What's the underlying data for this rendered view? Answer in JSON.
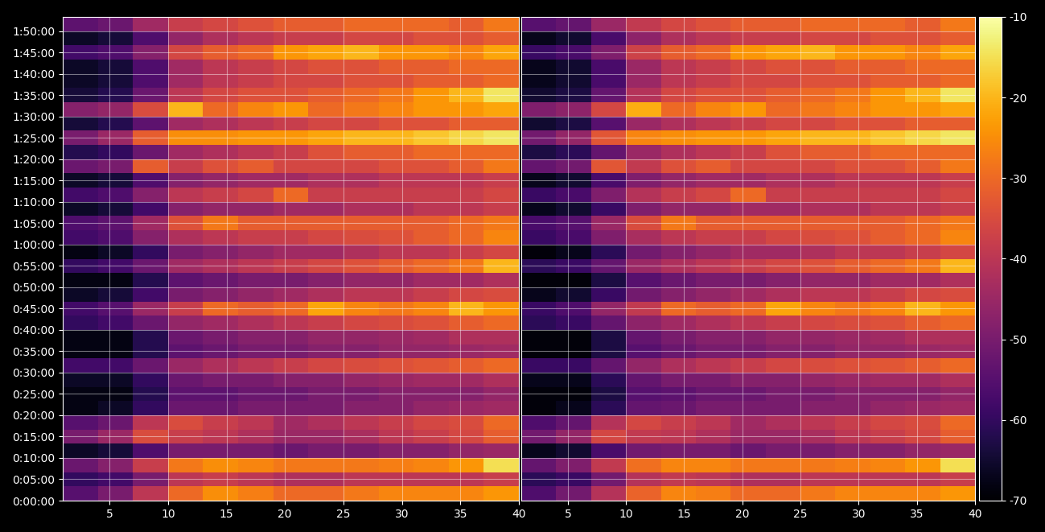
{
  "chart_data": [
    {
      "type": "heatmap",
      "grid": true,
      "xlim": [
        1,
        40
      ],
      "ylim": [
        0,
        6800
      ],
      "xticks": [
        5,
        10,
        15,
        20,
        25,
        30,
        35,
        40
      ],
      "yticks": [
        {
          "value": 0,
          "label": "0:00:00"
        },
        {
          "value": 300,
          "label": "0:05:00"
        },
        {
          "value": 600,
          "label": "0:10:00"
        },
        {
          "value": 900,
          "label": "0:15:00"
        },
        {
          "value": 1200,
          "label": "0:20:00"
        },
        {
          "value": 1500,
          "label": "0:25:00"
        },
        {
          "value": 1800,
          "label": "0:30:00"
        },
        {
          "value": 2100,
          "label": "0:35:00"
        },
        {
          "value": 2400,
          "label": "0:40:00"
        },
        {
          "value": 2700,
          "label": "0:45:00"
        },
        {
          "value": 3000,
          "label": "0:50:00"
        },
        {
          "value": 3300,
          "label": "0:55:00"
        },
        {
          "value": 3600,
          "label": "1:00:00"
        },
        {
          "value": 3900,
          "label": "1:05:00"
        },
        {
          "value": 4200,
          "label": "1:10:00"
        },
        {
          "value": 4500,
          "label": "1:15:00"
        },
        {
          "value": 4800,
          "label": "1:20:00"
        },
        {
          "value": 5100,
          "label": "1:25:00"
        },
        {
          "value": 5400,
          "label": "1:30:00"
        },
        {
          "value": 5700,
          "label": "1:35:00"
        },
        {
          "value": 6000,
          "label": "1:40:00"
        },
        {
          "value": 6300,
          "label": "1:45:00"
        },
        {
          "value": 6600,
          "label": "1:50:00"
        }
      ],
      "x_edges": [
        1,
        4,
        7,
        10,
        13,
        16,
        19,
        22,
        25,
        28,
        31,
        34,
        37,
        40
      ],
      "y_edges": [
        0,
        200,
        400,
        600,
        800,
        1000,
        1200,
        1400,
        1600,
        1800,
        2000,
        2200,
        2400,
        2600,
        2800,
        3000,
        3200,
        3400,
        3600,
        3800,
        4000,
        4200,
        4400,
        4600,
        4800,
        5000,
        5200,
        5400,
        5600,
        5800,
        6000,
        6200,
        6400,
        6600,
        6800
      ],
      "cells": [
        [
          -55,
          -50,
          -40,
          -30,
          -25,
          -27,
          -30,
          -30,
          -28,
          -26,
          -26,
          -26,
          -24
        ],
        [
          -60,
          -58,
          -50,
          -40,
          -38,
          -40,
          -42,
          -42,
          -40,
          -40,
          -40,
          -40,
          -38
        ],
        [
          -52,
          -48,
          -38,
          -28,
          -25,
          -26,
          -28,
          -28,
          -28,
          -27,
          -26,
          -24,
          -15
        ],
        [
          -66,
          -64,
          -56,
          -50,
          -50,
          -50,
          -52,
          -50,
          -50,
          -48,
          -48,
          -46,
          -45
        ],
        [
          -50,
          -45,
          -35,
          -38,
          -40,
          -42,
          -45,
          -45,
          -43,
          -40,
          -38,
          -36,
          -32
        ],
        [
          -55,
          -52,
          -40,
          -35,
          -38,
          -40,
          -44,
          -42,
          -40,
          -38,
          -36,
          -35,
          -30
        ],
        [
          -68,
          -66,
          -60,
          -52,
          -52,
          -50,
          -50,
          -50,
          -48,
          -48,
          -46,
          -45,
          -44
        ],
        [
          -68,
          -68,
          -62,
          -54,
          -54,
          -52,
          -52,
          -50,
          -50,
          -48,
          -48,
          -48,
          -46
        ],
        [
          -66,
          -66,
          -60,
          -52,
          -50,
          -50,
          -48,
          -48,
          -46,
          -45,
          -44,
          -44,
          -42
        ],
        [
          -58,
          -58,
          -52,
          -45,
          -42,
          -40,
          -38,
          -36,
          -35,
          -34,
          -33,
          -32,
          -30
        ],
        [
          -68,
          -68,
          -62,
          -54,
          -52,
          -50,
          -50,
          -48,
          -48,
          -46,
          -46,
          -45,
          -44
        ],
        [
          -68,
          -68,
          -62,
          -52,
          -50,
          -48,
          -48,
          -46,
          -46,
          -45,
          -44,
          -42,
          -42
        ],
        [
          -60,
          -58,
          -52,
          -46,
          -44,
          -42,
          -40,
          -38,
          -36,
          -35,
          -34,
          -32,
          -30
        ],
        [
          -58,
          -55,
          -45,
          -38,
          -30,
          -32,
          -30,
          -22,
          -26,
          -28,
          -26,
          -20,
          -24
        ],
        [
          -66,
          -64,
          -58,
          -50,
          -48,
          -46,
          -44,
          -42,
          -40,
          -40,
          -38,
          -36,
          -35
        ],
        [
          -68,
          -68,
          -62,
          -54,
          -52,
          -50,
          -50,
          -48,
          -46,
          -46,
          -44,
          -44,
          -42
        ],
        [
          -60,
          -58,
          -52,
          -44,
          -42,
          -40,
          -38,
          -36,
          -34,
          -32,
          -30,
          -28,
          -20
        ],
        [
          -68,
          -66,
          -60,
          -50,
          -48,
          -46,
          -44,
          -44,
          -42,
          -40,
          -40,
          -38,
          -36
        ],
        [
          -58,
          -56,
          -48,
          -42,
          -40,
          -38,
          -38,
          -36,
          -35,
          -34,
          -32,
          -30,
          -26
        ],
        [
          -56,
          -54,
          -44,
          -34,
          -28,
          -32,
          -32,
          -32,
          -32,
          -32,
          -32,
          -30,
          -28
        ],
        [
          -66,
          -64,
          -58,
          -48,
          -46,
          -46,
          -44,
          -44,
          -42,
          -42,
          -40,
          -40,
          -38
        ],
        [
          -58,
          -56,
          -48,
          -40,
          -38,
          -36,
          -30,
          -38,
          -38,
          -38,
          -38,
          -38,
          -36
        ],
        [
          -66,
          -64,
          -56,
          -48,
          -46,
          -44,
          -44,
          -42,
          -42,
          -40,
          -40,
          -40,
          -38
        ],
        [
          -52,
          -50,
          -32,
          -38,
          -34,
          -32,
          -36,
          -36,
          -36,
          -34,
          -34,
          -32,
          -28
        ],
        [
          -62,
          -60,
          -52,
          -44,
          -42,
          -40,
          -38,
          -34,
          -32,
          -32,
          -30,
          -30,
          -30
        ],
        [
          -50,
          -45,
          -32,
          -25,
          -25,
          -24,
          -24,
          -22,
          -20,
          -20,
          -18,
          -16,
          -14
        ],
        [
          -64,
          -62,
          -54,
          -44,
          -42,
          -40,
          -38,
          -36,
          -36,
          -34,
          -34,
          -32,
          -32
        ],
        [
          -48,
          -46,
          -35,
          -20,
          -30,
          -26,
          -24,
          -30,
          -28,
          -26,
          -24,
          -24,
          -22
        ],
        [
          -64,
          -62,
          -52,
          -40,
          -36,
          -34,
          -34,
          -32,
          -30,
          -28,
          -24,
          -20,
          -14
        ],
        [
          -66,
          -64,
          -56,
          -44,
          -40,
          -38,
          -36,
          -36,
          -34,
          -34,
          -32,
          -32,
          -30
        ],
        [
          -66,
          -64,
          -56,
          -44,
          -40,
          -38,
          -36,
          -34,
          -34,
          -32,
          -32,
          -30,
          -30
        ],
        [
          -58,
          -56,
          -48,
          -36,
          -32,
          -30,
          -24,
          -22,
          -20,
          -24,
          -24,
          -26,
          -22
        ],
        [
          -66,
          -64,
          -56,
          -46,
          -42,
          -40,
          -38,
          -38,
          -36,
          -36,
          -34,
          -34,
          -32
        ],
        [
          -54,
          -52,
          -44,
          -38,
          -36,
          -34,
          -32,
          -32,
          -30,
          -30,
          -30,
          -32,
          -28
        ]
      ]
    },
    {
      "type": "heatmap",
      "grid": true,
      "tick_labels": "x",
      "xlim": [
        1,
        40
      ],
      "ylim": [
        0,
        6800
      ],
      "xticks": [
        5,
        10,
        15,
        20,
        25,
        30,
        35,
        40
      ],
      "yticks": [
        0,
        300,
        600,
        900,
        1200,
        1500,
        1800,
        2100,
        2400,
        2700,
        3000,
        3300,
        3600,
        3900,
        4200,
        4500,
        4800,
        5100,
        5400,
        5700,
        6000,
        6300,
        6600
      ],
      "x_edges": [
        1,
        4,
        7,
        10,
        13,
        16,
        19,
        22,
        25,
        28,
        31,
        34,
        37,
        40
      ],
      "y_edges": [
        0,
        200,
        400,
        600,
        800,
        1000,
        1200,
        1400,
        1600,
        1800,
        2000,
        2200,
        2400,
        2600,
        2800,
        3000,
        3200,
        3400,
        3600,
        3800,
        4000,
        4200,
        4400,
        4600,
        4800,
        5000,
        5200,
        5400,
        5600,
        5800,
        6000,
        6200,
        6400,
        6600,
        6800
      ],
      "cells": [
        [
          -56,
          -51,
          -41,
          -31,
          -26,
          -27,
          -30,
          -30,
          -28,
          -26,
          -26,
          -26,
          -24
        ],
        [
          -61,
          -59,
          -51,
          -41,
          -39,
          -40,
          -42,
          -42,
          -40,
          -40,
          -40,
          -40,
          -38
        ],
        [
          -53,
          -49,
          -39,
          -29,
          -26,
          -26,
          -28,
          -28,
          -28,
          -27,
          -26,
          -24,
          -15
        ],
        [
          -67,
          -65,
          -57,
          -51,
          -50,
          -50,
          -52,
          -50,
          -50,
          -48,
          -48,
          -46,
          -45
        ],
        [
          -51,
          -46,
          -36,
          -39,
          -40,
          -42,
          -45,
          -45,
          -43,
          -40,
          -38,
          -36,
          -32
        ],
        [
          -56,
          -53,
          -41,
          -36,
          -38,
          -40,
          -44,
          -42,
          -40,
          -38,
          -36,
          -35,
          -30
        ],
        [
          -69,
          -67,
          -61,
          -53,
          -52,
          -50,
          -50,
          -50,
          -48,
          -48,
          -46,
          -45,
          -44
        ],
        [
          -69,
          -69,
          -63,
          -55,
          -54,
          -52,
          -52,
          -50,
          -50,
          -48,
          -48,
          -48,
          -46
        ],
        [
          -67,
          -67,
          -61,
          -53,
          -50,
          -50,
          -48,
          -48,
          -46,
          -45,
          -44,
          -44,
          -42
        ],
        [
          -59,
          -59,
          -53,
          -46,
          -42,
          -40,
          -38,
          -36,
          -35,
          -34,
          -33,
          -32,
          -30
        ],
        [
          -69,
          -69,
          -63,
          -55,
          -52,
          -50,
          -50,
          -48,
          -48,
          -46,
          -46,
          -45,
          -44
        ],
        [
          -69,
          -69,
          -63,
          -53,
          -50,
          -48,
          -48,
          -46,
          -46,
          -45,
          -44,
          -42,
          -42
        ],
        [
          -61,
          -59,
          -53,
          -47,
          -44,
          -42,
          -40,
          -38,
          -36,
          -35,
          -34,
          -32,
          -30
        ],
        [
          -59,
          -56,
          -46,
          -39,
          -30,
          -32,
          -30,
          -22,
          -26,
          -28,
          -26,
          -20,
          -24
        ],
        [
          -67,
          -65,
          -59,
          -51,
          -48,
          -46,
          -44,
          -42,
          -40,
          -40,
          -38,
          -36,
          -35
        ],
        [
          -69,
          -69,
          -63,
          -55,
          -52,
          -50,
          -50,
          -48,
          -46,
          -46,
          -44,
          -44,
          -42
        ],
        [
          -61,
          -59,
          -53,
          -45,
          -42,
          -40,
          -38,
          -36,
          -34,
          -32,
          -30,
          -28,
          -20
        ],
        [
          -69,
          -67,
          -61,
          -51,
          -48,
          -46,
          -44,
          -44,
          -42,
          -40,
          -40,
          -38,
          -36
        ],
        [
          -59,
          -57,
          -49,
          -43,
          -40,
          -38,
          -38,
          -36,
          -35,
          -34,
          -32,
          -30,
          -26
        ],
        [
          -57,
          -55,
          -45,
          -35,
          -28,
          -32,
          -32,
          -32,
          -32,
          -32,
          -32,
          -30,
          -28
        ],
        [
          -67,
          -65,
          -59,
          -49,
          -46,
          -46,
          -44,
          -44,
          -42,
          -42,
          -40,
          -40,
          -38
        ],
        [
          -59,
          -57,
          -49,
          -41,
          -38,
          -36,
          -30,
          -38,
          -38,
          -38,
          -38,
          -38,
          -36
        ],
        [
          -67,
          -65,
          -57,
          -49,
          -46,
          -44,
          -44,
          -42,
          -42,
          -40,
          -40,
          -40,
          -38
        ],
        [
          -53,
          -51,
          -33,
          -39,
          -34,
          -32,
          -36,
          -36,
          -36,
          -34,
          -34,
          -32,
          -28
        ],
        [
          -63,
          -61,
          -53,
          -45,
          -42,
          -40,
          -38,
          -34,
          -32,
          -32,
          -30,
          -30,
          -30
        ],
        [
          -51,
          -46,
          -33,
          -26,
          -25,
          -24,
          -24,
          -22,
          -20,
          -20,
          -18,
          -16,
          -14
        ],
        [
          -65,
          -63,
          -55,
          -45,
          -42,
          -40,
          -38,
          -36,
          -36,
          -34,
          -34,
          -32,
          -32
        ],
        [
          -49,
          -47,
          -36,
          -21,
          -30,
          -26,
          -24,
          -30,
          -28,
          -26,
          -24,
          -24,
          -22
        ],
        [
          -65,
          -63,
          -53,
          -41,
          -36,
          -34,
          -34,
          -32,
          -30,
          -28,
          -24,
          -20,
          -14
        ],
        [
          -67,
          -65,
          -57,
          -45,
          -40,
          -38,
          -36,
          -36,
          -34,
          -34,
          -32,
          -32,
          -30
        ],
        [
          -67,
          -65,
          -57,
          -45,
          -40,
          -38,
          -36,
          -34,
          -34,
          -32,
          -32,
          -30,
          -30
        ],
        [
          -59,
          -57,
          -49,
          -37,
          -32,
          -30,
          -24,
          -22,
          -20,
          -24,
          -24,
          -26,
          -22
        ],
        [
          -67,
          -65,
          -57,
          -47,
          -42,
          -40,
          -38,
          -38,
          -36,
          -36,
          -34,
          -34,
          -32
        ],
        [
          -55,
          -53,
          -45,
          -39,
          -36,
          -34,
          -32,
          -32,
          -30,
          -30,
          -30,
          -32,
          -28
        ]
      ]
    }
  ],
  "colorbar": {
    "range": [
      -70,
      -10
    ],
    "ticks": [
      -70,
      -60,
      -50,
      -40,
      -30,
      -20,
      -10
    ]
  }
}
